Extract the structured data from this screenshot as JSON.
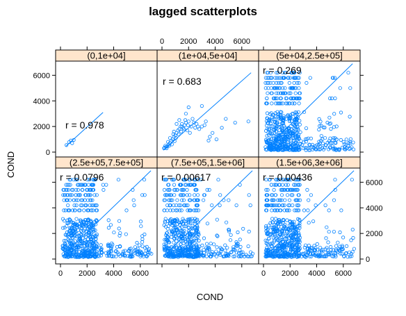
{
  "chart_data": {
    "type": "scatter",
    "title": "lagged scatterplots",
    "xlabel": "COND",
    "ylabel": "COND",
    "xlim": [
      -400,
      7400
    ],
    "ylim": [
      -400,
      7400
    ],
    "xticks": [
      0,
      2000,
      4000,
      6000
    ],
    "yticks": [
      0,
      2000,
      4000,
      6000
    ],
    "point_color": "#0080ff",
    "strip_color": "#ffe5cc",
    "panels": [
      {
        "label": "(0,1e+04]",
        "r": "r = 0.978",
        "line": [
          [
            400,
            450
          ],
          [
            3200,
            3100
          ]
        ],
        "points": [
          [
            450,
            550
          ],
          [
            650,
            780
          ],
          [
            780,
            900
          ],
          [
            1000,
            950
          ],
          [
            880,
            700
          ]
        ]
      },
      {
        "label": "(1e+04,5e+04]",
        "r": "r = 0.683",
        "line": [
          [
            100,
            150
          ],
          [
            6700,
            6200
          ]
        ],
        "points": [
          [
            150,
            300
          ],
          [
            200,
            350
          ],
          [
            300,
            400
          ],
          [
            400,
            450
          ],
          [
            500,
            600
          ],
          [
            600,
            700
          ],
          [
            700,
            900
          ],
          [
            800,
            1000
          ],
          [
            900,
            1200
          ],
          [
            1000,
            1300
          ],
          [
            1100,
            1500
          ],
          [
            1200,
            1700
          ],
          [
            1300,
            1800
          ],
          [
            1400,
            2000
          ],
          [
            1500,
            2200
          ],
          [
            1600,
            1900
          ],
          [
            1700,
            2100
          ],
          [
            1800,
            2300
          ],
          [
            1900,
            1700
          ],
          [
            2000,
            2400
          ],
          [
            2200,
            2000
          ],
          [
            2400,
            2300
          ],
          [
            2600,
            2200
          ],
          [
            2800,
            1800
          ],
          [
            3000,
            2000
          ],
          [
            2000,
            3500
          ],
          [
            3000,
            3600
          ],
          [
            1800,
            3000
          ],
          [
            600,
            1100
          ],
          [
            900,
            1600
          ],
          [
            1100,
            2200
          ],
          [
            1300,
            2500
          ],
          [
            1500,
            2000
          ],
          [
            2100,
            1500
          ],
          [
            2500,
            1900
          ],
          [
            3600,
            1200
          ],
          [
            3500,
            900
          ],
          [
            4500,
            1900
          ],
          [
            5500,
            2300
          ],
          [
            6500,
            2400
          ],
          [
            250,
            500
          ],
          [
            350,
            300
          ],
          [
            450,
            800
          ],
          [
            550,
            500
          ],
          [
            750,
            600
          ],
          [
            850,
            1400
          ],
          [
            950,
            850
          ],
          [
            1050,
            1100
          ],
          [
            1250,
            1400
          ],
          [
            1450,
            1600
          ],
          [
            1650,
            1800
          ],
          [
            1750,
            2500
          ],
          [
            1950,
            2100
          ],
          [
            2300,
            2600
          ],
          [
            2700,
            2000
          ],
          [
            3200,
            2100
          ],
          [
            3300,
            2400
          ],
          [
            3800,
            1500
          ],
          [
            4100,
            1000
          ],
          [
            4800,
            2600
          ]
        ]
      },
      {
        "label": "(5e+04,2.5e+05]",
        "r": "r = 0.269",
        "line": [
          [
            100,
            200
          ],
          [
            6700,
            6900
          ]
        ],
        "points": []
      },
      {
        "label": "(2.5e+05,7.5e+05]",
        "r": "r = 0.0796",
        "line": [
          [
            100,
            200
          ],
          [
            6800,
            6900
          ]
        ],
        "points": []
      },
      {
        "label": "(7.5e+05,1.5e+06]",
        "r": "r = 0.00617",
        "line": [
          [
            100,
            200
          ],
          [
            6800,
            6900
          ]
        ],
        "points": []
      },
      {
        "label": "(1.5e+06,3e+06]",
        "r": "r = 0.00436",
        "line": [
          [
            100,
            200
          ],
          [
            6800,
            6900
          ]
        ],
        "points": []
      }
    ]
  }
}
